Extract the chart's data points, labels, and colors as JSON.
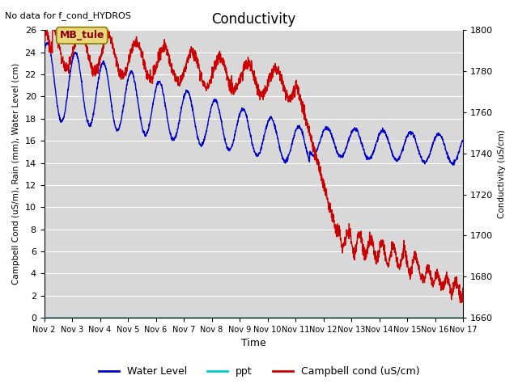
{
  "title": "Conductivity",
  "top_left_text": "No data for f_cond_HYDROS",
  "ylabel_left": "Campbell Cond (uS/m), Rain (mm), Water Level (cm)",
  "ylabel_right": "Conductivity (uS/cm)",
  "xlabel": "Time",
  "ylim_left": [
    0,
    26
  ],
  "ylim_right": [
    1660,
    1800
  ],
  "fig_bg_color": "#ffffff",
  "plot_bg_color": "#d8d8d8",
  "grid_color": "#ffffff",
  "annotation_box": "MB_tule",
  "annotation_box_facecolor": "#e8d87a",
  "annotation_box_edgecolor": "#8b7a00",
  "x_tick_labels": [
    "Nov 2",
    "Nov 3",
    "Nov 4",
    "Nov 5",
    "Nov 6",
    "Nov 7",
    "Nov 8",
    "Nov 9",
    "Nov 10",
    "Nov 11",
    "Nov 12",
    "Nov 13",
    "Nov 14",
    "Nov 15",
    "Nov 16",
    "Nov 17"
  ],
  "legend_entries": [
    "Water Level",
    "ppt",
    "Campbell cond (uS/cm)"
  ],
  "legend_colors": [
    "#0000cc",
    "#00cccc",
    "#cc0000"
  ],
  "water_level_color": "#0000cc",
  "ppt_color": "#00cccc",
  "campbell_color": "#cc0000",
  "right_yticks": [
    1660,
    1680,
    1700,
    1720,
    1740,
    1760,
    1780,
    1800
  ],
  "left_yticks": [
    0,
    2,
    4,
    6,
    8,
    10,
    12,
    14,
    16,
    18,
    20,
    22,
    24,
    26
  ]
}
